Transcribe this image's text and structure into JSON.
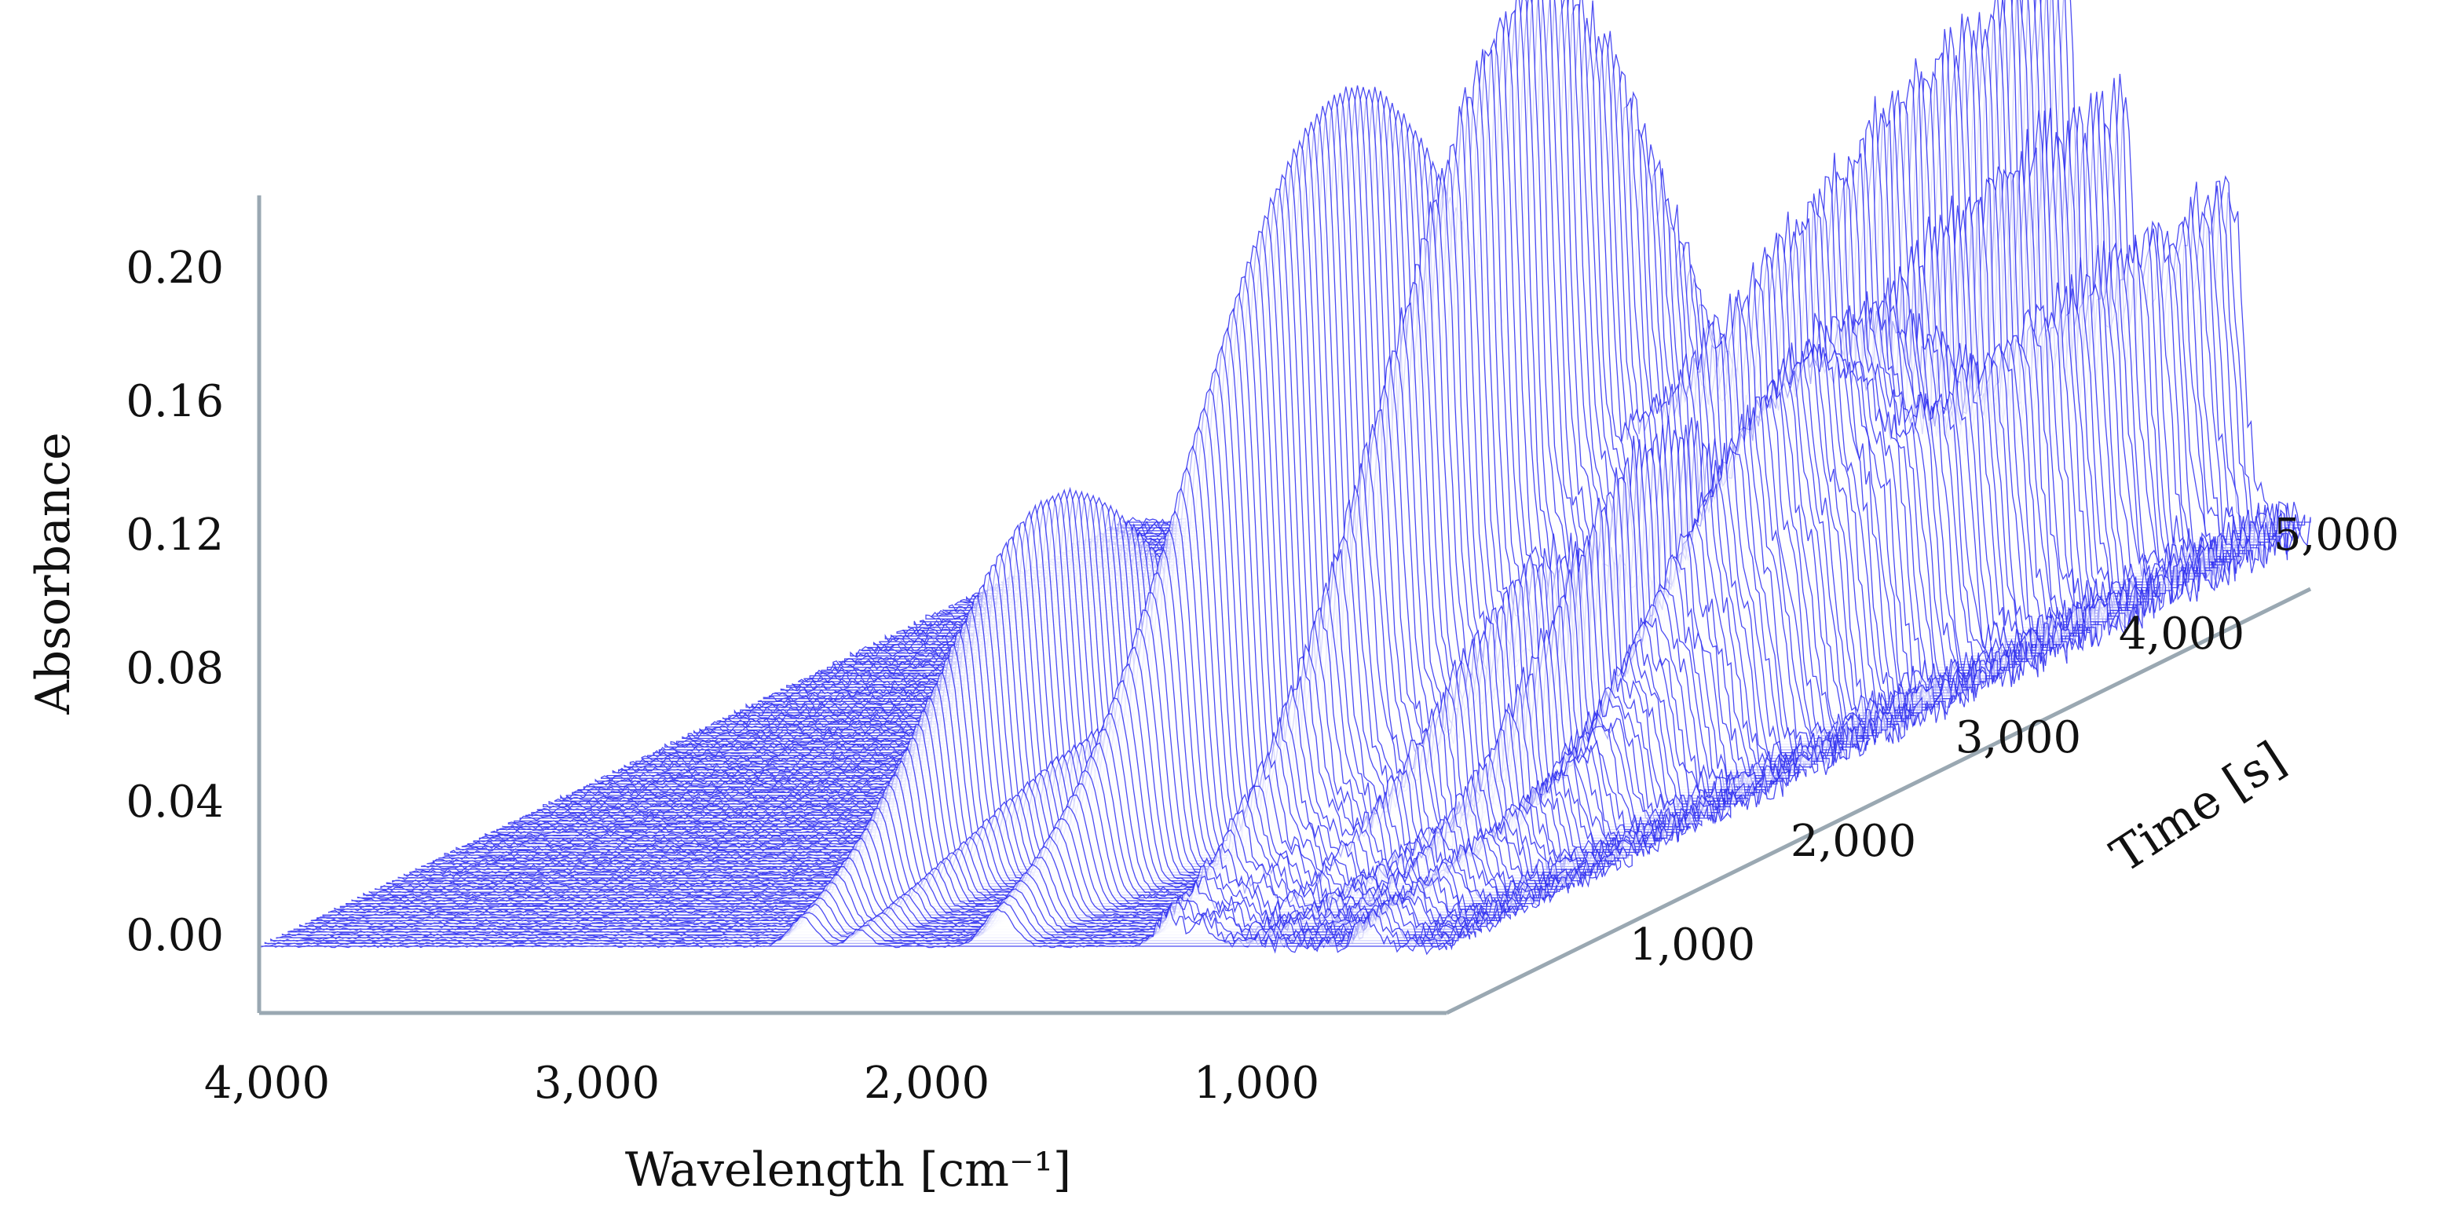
{
  "chart_data": {
    "type": "surface-3d-waterfall",
    "xlabel": "Wavelength [cm⁻¹]",
    "ylabel": "Absorbance",
    "zlabel": "Time [s]",
    "x_ticks": [
      "4,000",
      "3,000",
      "2,000",
      "1,000"
    ],
    "y_ticks": [
      "0.00",
      "0.04",
      "0.08",
      "0.12",
      "0.16",
      "0.20"
    ],
    "z_ticks": [
      "1,000",
      "2,000",
      "3,000",
      "4,000",
      "5,000"
    ],
    "xlim": [
      4000,
      400
    ],
    "ylim": [
      -0.02,
      0.225
    ],
    "zlim": [
      0,
      5700
    ],
    "grid": false,
    "line_color": "#2b2bf0",
    "axis_color": "#9aa8b2",
    "peaks": [
      {
        "wavenumber": 2930,
        "max_absorbance": 0.01,
        "center_time": 2900,
        "width_cm": 60,
        "time_width": 300
      },
      {
        "wavenumber": 2360,
        "max_absorbance": 0.06,
        "center_time": 1500,
        "width_cm": 40,
        "time_width": 700
      },
      {
        "wavenumber": 2340,
        "max_absorbance": 0.045,
        "center_time": 1900,
        "width_cm": 40,
        "time_width": 800
      },
      {
        "wavenumber": 2180,
        "max_absorbance": 0.03,
        "center_time": 1700,
        "width_cm": 30,
        "time_width": 900
      },
      {
        "wavenumber": 1760,
        "max_absorbance": 0.205,
        "center_time": 2300,
        "width_cm": 45,
        "time_width": 950
      },
      {
        "wavenumber": 1710,
        "max_absorbance": 0.03,
        "center_time": 1450,
        "width_cm": 30,
        "time_width": 400
      },
      {
        "wavenumber": 1240,
        "max_absorbance": 0.235,
        "center_time": 2400,
        "width_cm": 40,
        "time_width": 950
      },
      {
        "wavenumber": 1140,
        "max_absorbance": 0.17,
        "center_time": 5600,
        "width_cm": 30,
        "time_width": 2200
      },
      {
        "wavenumber": 1060,
        "max_absorbance": 0.07,
        "center_time": 2100,
        "width_cm": 25,
        "time_width": 700
      },
      {
        "wavenumber": 960,
        "max_absorbance": 0.13,
        "center_time": 5300,
        "width_cm": 25,
        "time_width": 1800
      },
      {
        "wavenumber": 870,
        "max_absorbance": 0.1,
        "center_time": 2400,
        "width_cm": 25,
        "time_width": 700
      },
      {
        "wavenumber": 760,
        "max_absorbance": 0.11,
        "center_time": 3400,
        "width_cm": 30,
        "time_width": 1000
      },
      {
        "wavenumber": 700,
        "max_absorbance": 0.08,
        "center_time": 2900,
        "width_cm": 25,
        "time_width": 800
      },
      {
        "wavenumber": 640,
        "max_absorbance": 0.1,
        "center_time": 5600,
        "width_cm": 35,
        "time_width": 2500
      }
    ]
  }
}
